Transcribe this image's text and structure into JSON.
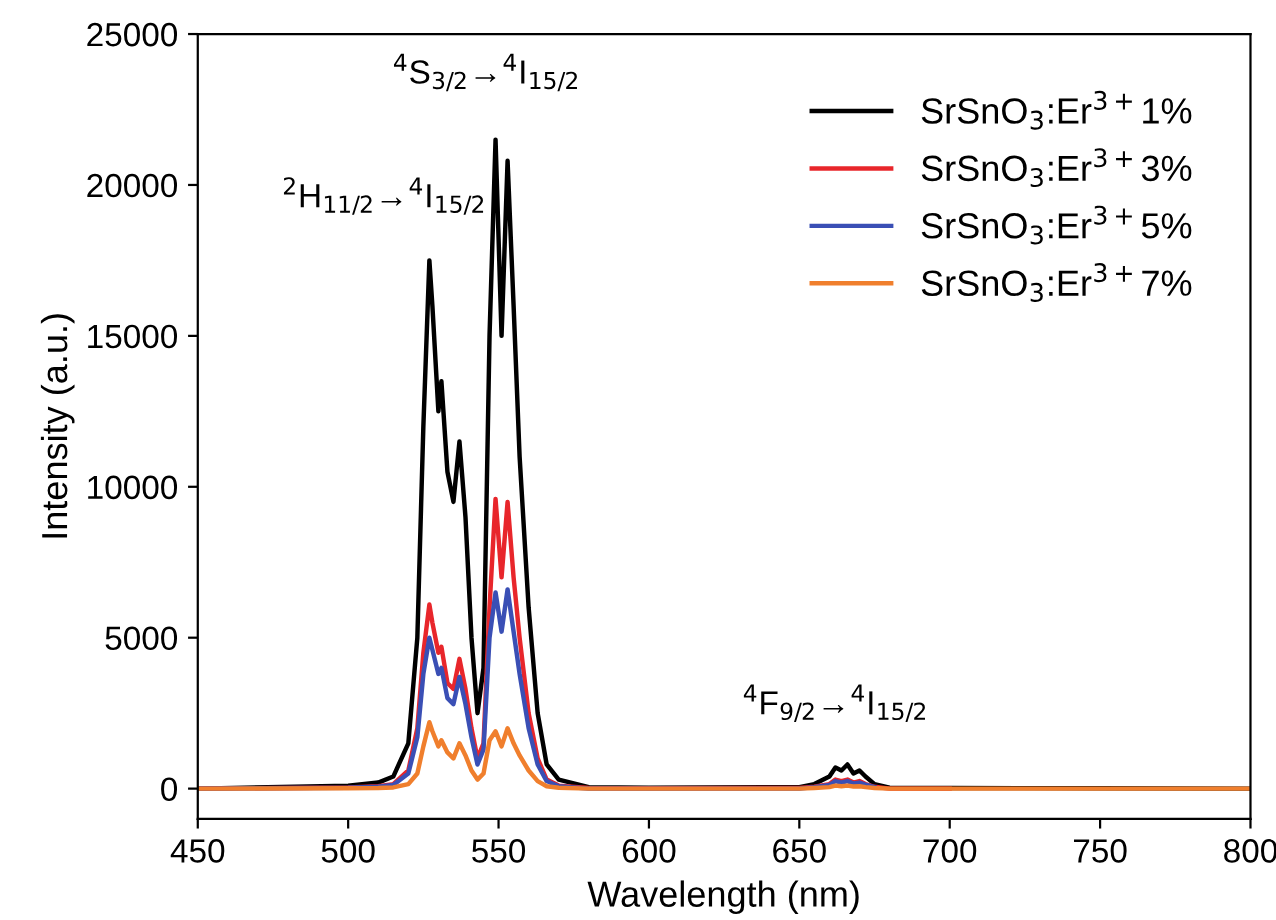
{
  "chart_data": {
    "type": "line",
    "xlabel": "Wavelength (nm)",
    "ylabel": "Intensity (a.u.)",
    "x": [
      450,
      500,
      510,
      515,
      520,
      523,
      525,
      527,
      528,
      530,
      531,
      533,
      535,
      537,
      539,
      541,
      543,
      545,
      547,
      549,
      551,
      553,
      555,
      557,
      560,
      563,
      566,
      570,
      580,
      600,
      650,
      655,
      660,
      662,
      664,
      666,
      668,
      670,
      672,
      675,
      680,
      700,
      750,
      800
    ],
    "series": [
      {
        "name": "SrSnO$_{3}$:Er$^{3+}$1%",
        "color": "#000000",
        "values": [
          0,
          100,
          200,
          400,
          1500,
          5000,
          12000,
          17500,
          16000,
          12500,
          13500,
          10500,
          9500,
          11500,
          9000,
          5000,
          2500,
          4000,
          15000,
          21500,
          15000,
          20800,
          16000,
          11000,
          6000,
          2500,
          800,
          300,
          50,
          30,
          50,
          150,
          400,
          700,
          600,
          800,
          500,
          600,
          400,
          150,
          30,
          20,
          10,
          0
        ]
      },
      {
        "name": "SrSnO$_{3}$:Er$^{3+}$3%",
        "color": "#e8262b",
        "values": [
          0,
          40,
          80,
          150,
          600,
          2000,
          4500,
          6100,
          5500,
          4500,
          4700,
          3500,
          3300,
          4300,
          3300,
          2000,
          1000,
          1500,
          6000,
          9600,
          7000,
          9500,
          7000,
          5000,
          2500,
          1000,
          300,
          100,
          20,
          10,
          20,
          60,
          150,
          300,
          250,
          300,
          200,
          250,
          150,
          60,
          0,
          0,
          null,
          null
        ]
      },
      {
        "name": "SrSnO$_{3}$:Er$^{3+}$5%",
        "color": "#3a4fb5",
        "values": [
          0,
          30,
          60,
          120,
          500,
          1700,
          3800,
          5000,
          4600,
          3800,
          4000,
          3000,
          2800,
          3700,
          2800,
          1700,
          800,
          1300,
          5000,
          6500,
          5200,
          6600,
          5200,
          3800,
          2000,
          800,
          250,
          80,
          0,
          0,
          0,
          50,
          120,
          250,
          200,
          250,
          170,
          200,
          130,
          50,
          null,
          null,
          null,
          null
        ]
      },
      {
        "name": "SrSnO$_{3}$:Er$^{3+}$7%",
        "color": "#f07f2d",
        "values": [
          0,
          10,
          20,
          40,
          150,
          500,
          1400,
          2200,
          1900,
          1400,
          1600,
          1200,
          1000,
          1500,
          1100,
          600,
          300,
          500,
          1600,
          1900,
          1400,
          2000,
          1500,
          1100,
          600,
          250,
          80,
          30,
          0,
          0,
          0,
          20,
          50,
          100,
          80,
          100,
          70,
          80,
          50,
          20,
          0,
          0,
          0,
          0
        ]
      }
    ],
    "annotations": [
      {
        "text": "$^{2}$H$_{11/2}$→$^{4}$I$_{15/2}$",
        "x": 527,
        "y": 17500
      },
      {
        "text": "$^{4}$S$_{3/2}$→$^{4}$I$_{15/2}$",
        "x": 549,
        "y": 21500
      },
      {
        "text": "$^{4}$F$_{9/2}$→$^{4}$I$_{15/2}$",
        "x": 666,
        "y": 800
      }
    ],
    "xlim": [
      450,
      800
    ],
    "xticks": [
      450,
      500,
      550,
      600,
      650,
      700,
      750,
      800
    ],
    "ylim": [
      -1000,
      25000
    ],
    "yticks": [
      0,
      5000,
      10000,
      15000,
      20000,
      25000
    ],
    "legend": "top right",
    "grid": false,
    "marker": "none",
    "line_style": "solid"
  }
}
